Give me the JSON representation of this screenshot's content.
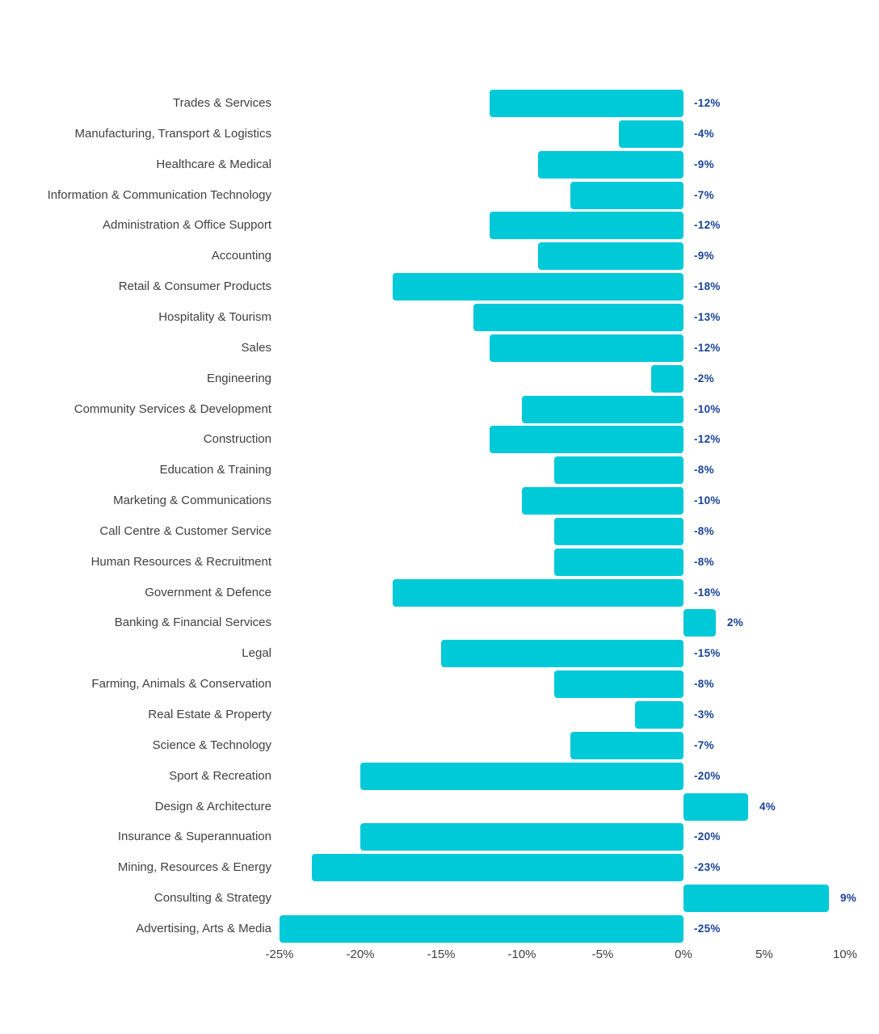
{
  "chart_data": {
    "type": "bar",
    "orientation": "horizontal",
    "title": "",
    "xlabel": "",
    "ylabel": "",
    "categories": [
      "Trades & Services",
      "Manufacturing, Transport & Logistics",
      "Healthcare & Medical",
      "Information & Communication Technology",
      "Administration & Office Support",
      "Accounting",
      "Retail & Consumer Products",
      "Hospitality & Tourism",
      "Sales",
      "Engineering",
      "Community Services & Development",
      "Construction",
      "Education & Training",
      "Marketing & Communications",
      "Call Centre & Customer Service",
      "Human Resources & Recruitment",
      "Government & Defence",
      "Banking & Financial Services",
      "Legal",
      "Farming, Animals & Conservation",
      "Real Estate & Property",
      "Science & Technology",
      "Sport & Recreation",
      "Design & Architecture",
      "Insurance & Superannuation",
      "Mining, Resources & Energy",
      "Consulting & Strategy",
      "Advertising, Arts & Media"
    ],
    "values": [
      -12,
      -4,
      -9,
      -7,
      -12,
      -9,
      -18,
      -13,
      -12,
      -2,
      -10,
      -12,
      -8,
      -10,
      -8,
      -8,
      -18,
      2,
      -15,
      -8,
      -3,
      -7,
      -20,
      4,
      -20,
      -23,
      9,
      -25
    ],
    "value_labels": [
      "-12%",
      "-4%",
      "-9%",
      "-7%",
      "-12%",
      "-9%",
      "-18%",
      "-13%",
      "-12%",
      "-2%",
      "-10%",
      "-12%",
      "-8%",
      "-10%",
      "-8%",
      "-8%",
      "-18%",
      "2%",
      "-15%",
      "-8%",
      "-3%",
      "-7%",
      "-20%",
      "4%",
      "-20%",
      "-23%",
      "9%",
      "-25%"
    ],
    "xlim": [
      -25,
      10
    ],
    "x_tick_labels": [
      "-25%",
      "-20%",
      "-15%",
      "-10%",
      "-5%",
      "0%",
      "5%",
      "10%"
    ],
    "x_tick_values": [
      -25,
      -20,
      -15,
      -10,
      -5,
      0,
      5,
      10
    ],
    "grid": false,
    "legend": false,
    "colors": {
      "bar": "#00c9d8",
      "value_label": "#1a4296",
      "category_label": "#404040",
      "axis_label": "#404040",
      "background": "#ffffff"
    }
  }
}
